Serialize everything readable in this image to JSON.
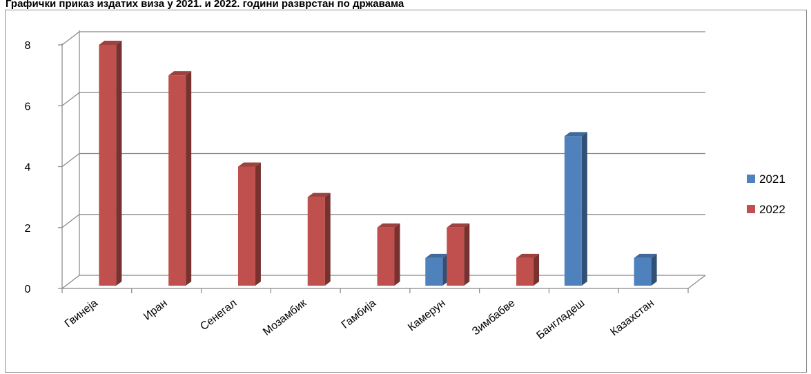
{
  "chart_data": {
    "type": "bar",
    "title": "Графички приказ издатих виза у 2021. и 2022. години разврстан по државама",
    "categories": [
      "Гвинеја",
      "Иран",
      "Сенегал",
      "Мозамбик",
      "Гамбија",
      "Камерун",
      "Зимбабве",
      "Бангладеш",
      "Казахстан"
    ],
    "series": [
      {
        "name": "2021",
        "values": [
          0,
          0,
          0,
          0,
          0,
          1,
          0,
          5,
          1
        ],
        "color": "#4f81bd"
      },
      {
        "name": "2022",
        "values": [
          8,
          7,
          4,
          3,
          2,
          2,
          1,
          0,
          0
        ],
        "color": "#c0504d"
      }
    ],
    "ylim": [
      0,
      8
    ],
    "yticks": [
      "0",
      "2",
      "4",
      "6",
      "8"
    ],
    "grid": true,
    "legend": "right",
    "style": "3d-clustered-column"
  }
}
